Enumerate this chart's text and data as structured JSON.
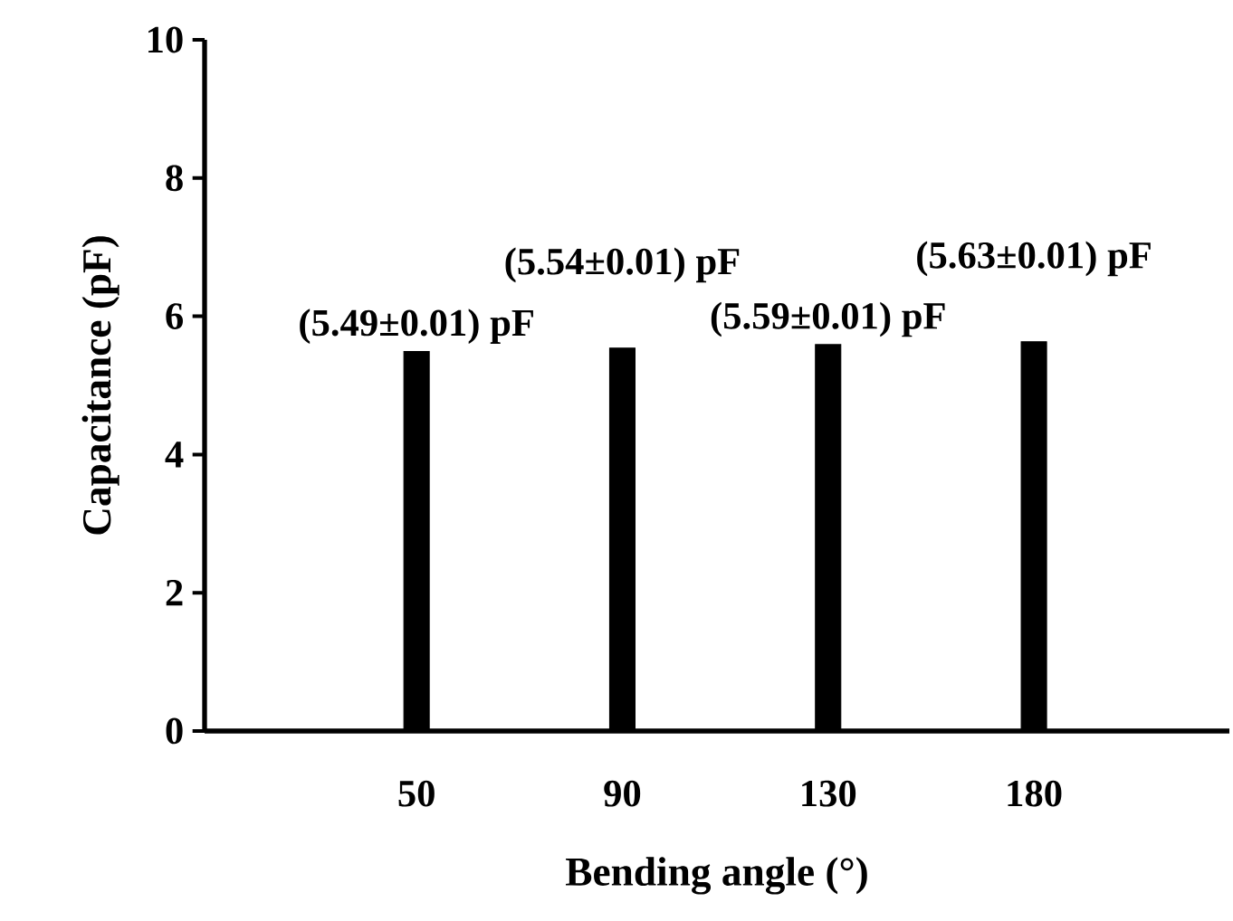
{
  "chart_data": {
    "type": "bar",
    "xlabel": "Bending angle (°)",
    "ylabel": "Capacitance (pF)",
    "categories": [
      "50",
      "90",
      "130",
      "180"
    ],
    "values": [
      5.49,
      5.54,
      5.59,
      5.63
    ],
    "value_labels": [
      "(5.49±0.01) pF",
      "(5.54±0.01) pF",
      "(5.59±0.01) pF",
      "(5.63±0.01) pF"
    ],
    "color": "#000000",
    "ylim": [
      0,
      10
    ],
    "yticks": [
      0,
      2,
      4,
      6,
      8,
      10
    ]
  }
}
